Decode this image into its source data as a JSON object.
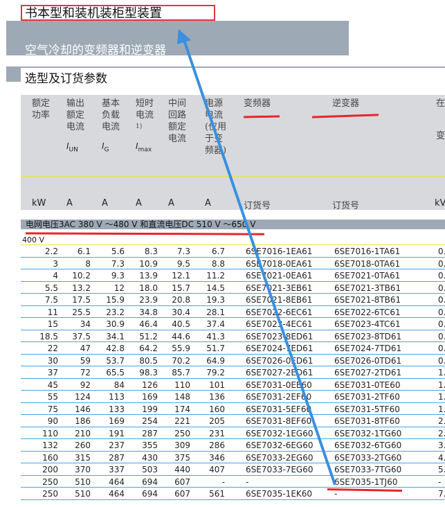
{
  "title": "书本型和装机装柜型装置",
  "subtitle": "空气冷却的变频器和逆变器",
  "section_title": "选型及订货参数",
  "headers": [
    {
      "text": "额定功率",
      "unit": "kW"
    },
    {
      "text": "输出额定电流",
      "symbol": "I",
      "sub": "UN",
      "unit": "A"
    },
    {
      "text": "基本负载电流",
      "symbol": "I",
      "sub": "G",
      "unit": "A"
    },
    {
      "text": "短时电流",
      "note": "1)",
      "symbol": "I",
      "sub": "max",
      "unit": "A"
    },
    {
      "text": "中间回路额定电流",
      "unit": "A"
    },
    {
      "text": "电源电流(仅用于变频器)",
      "unit": "A"
    },
    {
      "text": "变频器",
      "unit": "订货号"
    },
    {
      "text": "逆变器",
      "unit": "订货号"
    },
    {
      "text": "在的",
      "text2": "变",
      "unit": "kV"
    }
  ],
  "voltage_band": {
    "label": "电网电压",
    "range1": "3AC 380 V ～480 V",
    "mid": "和直流电压",
    "range2": "DC 510 V ～650 V"
  },
  "subgroup": "400 V",
  "rows": [
    [
      "2.2",
      "6.1",
      "5.6",
      "8.3",
      "7.3",
      "6.7",
      "6SE7016-1EA61",
      "6SE7016-1TA61",
      "0."
    ],
    [
      "3",
      "8",
      "7.3",
      "10.9",
      "9.5",
      "8.8",
      "6SE7018-0EA61",
      "6SE7018-0TA61",
      "0."
    ],
    [
      "4",
      "10.2",
      "9.3",
      "13.9",
      "12.1",
      "11.2",
      "6SE7021-0EA61",
      "6SE7021-0TA61",
      "0."
    ],
    [
      "5.5",
      "13.2",
      "12",
      "18.0",
      "15.7",
      "14.5",
      "6SE7021-3EB61",
      "6SE7021-3TB61",
      "0."
    ],
    [
      "7.5",
      "17.5",
      "15.9",
      "23.9",
      "20.8",
      "19.3",
      "6SE7021-8EB61",
      "6SE7021-8TB61",
      "0."
    ],
    [
      "11",
      "25.5",
      "23.2",
      "34.8",
      "30.4",
      "28.1",
      "6SE7022-6EC61",
      "6SE7022-6TC61",
      "0."
    ],
    [
      "15",
      "34",
      "30.9",
      "46.4",
      "40.5",
      "37.4",
      "6SE7023-4EC61",
      "6SE7023-4TC61",
      "0."
    ],
    [
      "18.5",
      "37.5",
      "34.1",
      "51.2",
      "44.6",
      "41.3",
      "6SE7023-8ED61",
      "6SE7023-8TD61",
      "0."
    ],
    [
      "22",
      "47",
      "42.8",
      "64.2",
      "55.9",
      "51.7",
      "6SE7024-7ED61",
      "6SE7024-7TD61",
      "0."
    ],
    [
      "30",
      "59",
      "53.7",
      "80.5",
      "70.2",
      "64.9",
      "6SE7026-0ED61",
      "6SE7026-0TD61",
      "0."
    ],
    [
      "37",
      "72",
      "65.5",
      "98.3",
      "85.7",
      "79.2",
      "6SE7027-2ED61",
      "6SE7027-2TD61",
      "1."
    ],
    [
      "45",
      "92",
      "84",
      "126",
      "110",
      "101",
      "6SE7031-0EE60",
      "6SE7031-0TE60",
      "1."
    ],
    [
      "55",
      "124",
      "113",
      "169",
      "148",
      "136",
      "6SE7031-2EF60",
      "6SE7031-2TF60",
      "1."
    ],
    [
      "75",
      "146",
      "133",
      "199",
      "174",
      "160",
      "6SE7031-5EF60",
      "6SE7031-5TF60",
      "1."
    ],
    [
      "90",
      "186",
      "169",
      "254",
      "221",
      "205",
      "6SE7031-8EF60",
      "6SE7031-8TF60",
      "2."
    ],
    [
      "110",
      "210",
      "191",
      "287",
      "250",
      "231",
      "6SE7032-1EG60",
      "6SE7032-1TG60",
      "2."
    ],
    [
      "132",
      "260",
      "237",
      "355",
      "309",
      "286",
      "6SE7032-6EG60",
      "6SE7032-6TG60",
      "3."
    ],
    [
      "160",
      "315",
      "287",
      "430",
      "375",
      "346",
      "6SE7033-2EG60",
      "6SE7033-2TG60",
      "4."
    ],
    [
      "200",
      "370",
      "337",
      "503",
      "440",
      "407",
      "6SE7033-7EG60",
      "6SE7033-7TG60",
      "5."
    ],
    [
      "250",
      "510",
      "464",
      "694",
      "607",
      "-",
      "-",
      "6SE7035-1TJ60",
      "-"
    ],
    [
      "250",
      "510",
      "464",
      "694",
      "607",
      "561",
      "6SE7035-1EK60",
      "-",
      "7."
    ]
  ],
  "annotation_colors": {
    "highlight_box": "#e8333a",
    "underline": "#e8242a",
    "arrow": "#3a8fe0"
  }
}
